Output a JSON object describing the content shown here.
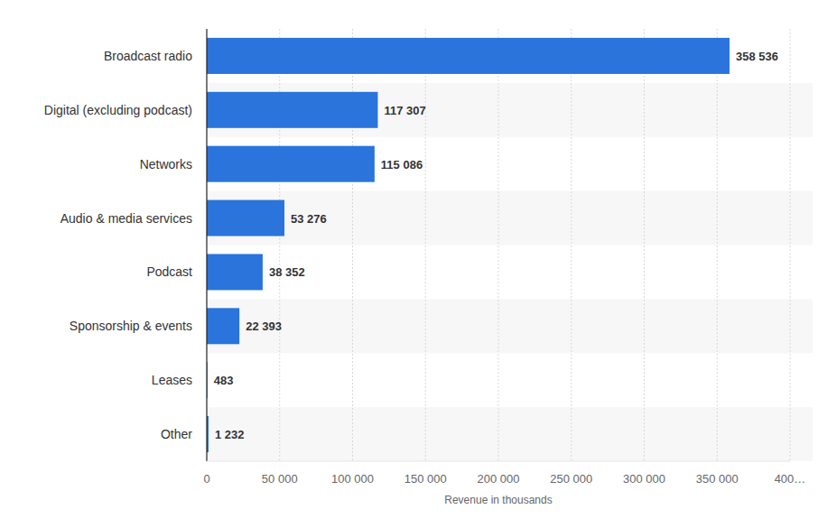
{
  "chart_data": {
    "type": "bar",
    "orientation": "horizontal",
    "x_label": "Revenue in thousands",
    "categories": [
      "Broadcast radio",
      "Digital (excluding podcast)",
      "Networks",
      "Audio & media services",
      "Podcast",
      "Sponsorship & events",
      "Leases",
      "Other"
    ],
    "values": [
      358536,
      117307,
      115086,
      53276,
      38352,
      22393,
      483,
      1232
    ],
    "value_labels": [
      "358 536",
      "117 307",
      "115 086",
      "53 276",
      "38 352",
      "22 393",
      "483",
      "1 232"
    ],
    "color": "#2a74db",
    "xlim": [
      0,
      400000
    ],
    "xticks": [
      0,
      {
        "value": 50000,
        "label": "50 000"
      },
      {
        "value": 100000,
        "label": "100 000"
      },
      {
        "value": 150000,
        "label": "150 000"
      },
      {
        "value": 200000,
        "label": "200 000"
      },
      {
        "value": 250000,
        "label": "250 000"
      },
      {
        "value": 300000,
        "label": "300 000"
      },
      {
        "value": 350000,
        "label": "350 000"
      },
      {
        "value": 400000,
        "label": "400…"
      }
    ],
    "grid": true,
    "data_labels": true
  }
}
